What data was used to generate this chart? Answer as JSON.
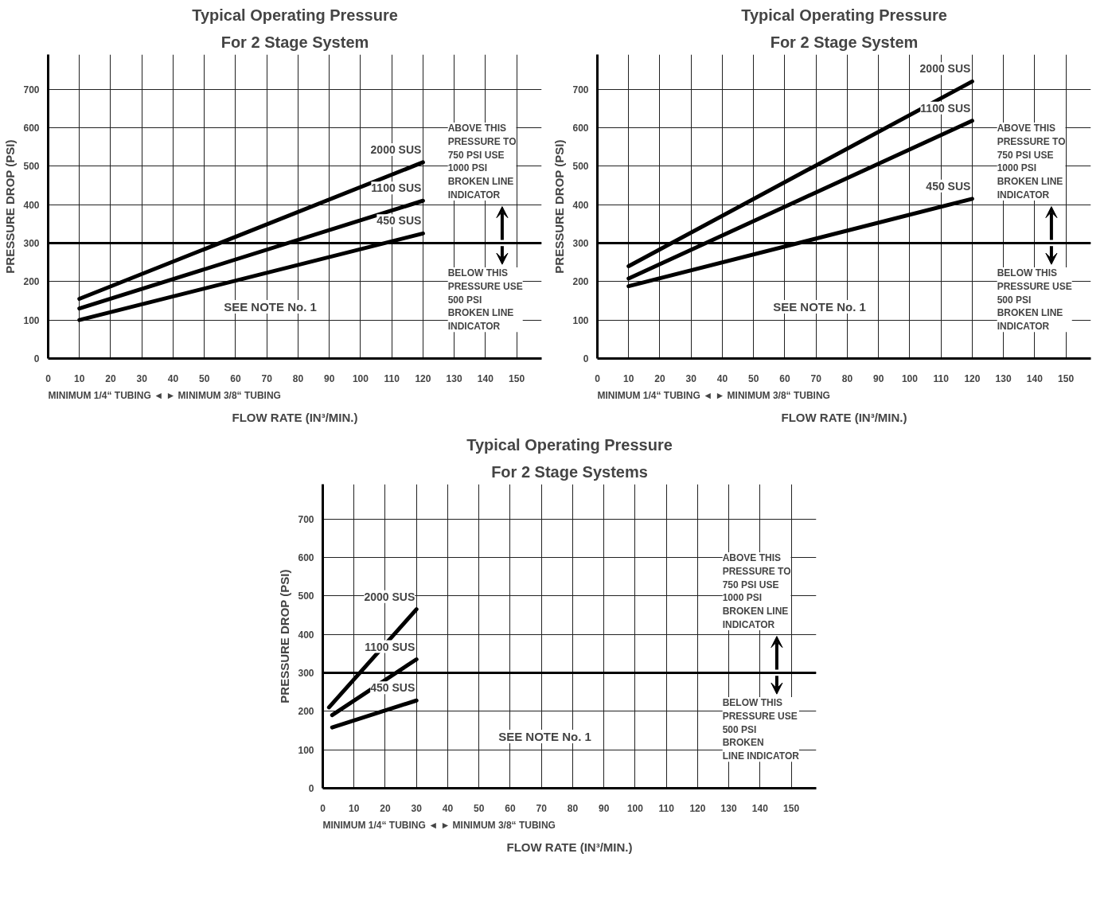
{
  "chart_data": [
    {
      "type": "line",
      "title": "Typical Operating Pressure",
      "subtitle": "For 2 Stage System",
      "xlabel": "FLOW RATE (IN³/MIN.)",
      "ylabel": "PRESSURE DROP (PSI)",
      "series": [
        {
          "name": "2000 SUS",
          "color": "#000000",
          "x": [
            10,
            120
          ],
          "values": [
            155,
            510
          ]
        },
        {
          "name": "1100 SUS",
          "color": "#000000",
          "x": [
            10,
            120
          ],
          "values": [
            130,
            410
          ]
        },
        {
          "name": "450 SUS",
          "color": "#000000",
          "x": [
            10,
            120
          ],
          "values": [
            100,
            325
          ]
        }
      ],
      "xlim": [
        0,
        158
      ],
      "ylim": [
        0,
        790
      ],
      "xticks": [
        0,
        10,
        20,
        30,
        40,
        50,
        60,
        70,
        80,
        90,
        100,
        110,
        120,
        130,
        140,
        150
      ],
      "yticks": [
        0,
        100,
        200,
        300,
        400,
        500,
        600,
        700
      ],
      "ref_lines": [
        {
          "axis": "y",
          "value": 300,
          "color": "#000000"
        }
      ],
      "annotations": [
        "SEE NOTE No. 1",
        "ABOVE THIS\nPRESSURE TO\n750 PSI USE\n1000 PSI\nBROKEN LINE\nINDICATOR",
        "BELOW THIS\nPRESSURE USE\n500 PSI\nBROKEN LINE\nINDICATOR",
        "MINIMUM 1/4“ TUBING ◄ ► MINIMUM 3/8“ TUBING"
      ],
      "grid": true,
      "legend": false,
      "marker": "none",
      "line_style": "solid"
    },
    {
      "type": "line",
      "title": "Typical Operating Pressure",
      "subtitle": "For 2 Stage System",
      "xlabel": "FLOW RATE (IN³/MIN.)",
      "ylabel": "PRESSURE DROP (PSI)",
      "series": [
        {
          "name": "2000 SUS",
          "color": "#000000",
          "x": [
            10,
            120
          ],
          "values": [
            240,
            720
          ]
        },
        {
          "name": "1100 SUS",
          "color": "#000000",
          "x": [
            10,
            120
          ],
          "values": [
            208,
            618
          ]
        },
        {
          "name": "450 SUS",
          "color": "#000000",
          "x": [
            10,
            120
          ],
          "values": [
            188,
            415
          ]
        }
      ],
      "xlim": [
        0,
        158
      ],
      "ylim": [
        0,
        790
      ],
      "xticks": [
        0,
        10,
        20,
        30,
        40,
        50,
        60,
        70,
        80,
        90,
        100,
        110,
        120,
        130,
        140,
        150
      ],
      "yticks": [
        0,
        100,
        200,
        300,
        400,
        500,
        600,
        700
      ],
      "ref_lines": [
        {
          "axis": "y",
          "value": 300,
          "color": "#000000"
        }
      ],
      "annotations": [
        "SEE NOTE No. 1",
        "ABOVE THIS\nPRESSURE TO\n750 PSI USE\n1000 PSI\nBROKEN LINE\nINDICATOR",
        "BELOW THIS\nPRESSURE USE\n500 PSI\nBROKEN LINE\nINDICATOR",
        "MINIMUM 1/4“ TUBING ◄ ► MINIMUM 3/8“ TUBING"
      ],
      "grid": true,
      "legend": false,
      "marker": "none",
      "line_style": "solid"
    },
    {
      "type": "line",
      "title": "Typical Operating Pressure",
      "subtitle": "For 2 Stage Systems",
      "xlabel": "FLOW RATE (IN³/MIN.)",
      "ylabel": "PRESSURE DROP (PSI)",
      "series": [
        {
          "name": "2000 SUS",
          "color": "#000000",
          "x": [
            2,
            30
          ],
          "values": [
            210,
            465
          ]
        },
        {
          "name": "1100 SUS",
          "color": "#000000",
          "x": [
            3,
            30
          ],
          "values": [
            190,
            335
          ]
        },
        {
          "name": "450 SUS",
          "color": "#000000",
          "x": [
            3,
            30
          ],
          "values": [
            158,
            228
          ]
        }
      ],
      "xlim": [
        0,
        158
      ],
      "ylim": [
        0,
        790
      ],
      "xticks": [
        0,
        10,
        20,
        30,
        40,
        50,
        60,
        70,
        80,
        90,
        100,
        110,
        120,
        130,
        140,
        150
      ],
      "yticks": [
        0,
        100,
        200,
        300,
        400,
        500,
        600,
        700
      ],
      "ref_lines": [
        {
          "axis": "y",
          "value": 300,
          "color": "#000000"
        }
      ],
      "annotations": [
        "SEE NOTE No. 1",
        "ABOVE THIS\nPRESSURE TO\n750 PSI USE\n1000 PSI\nBROKEN LINE\nINDICATOR",
        "BELOW THIS\nPRESSURE USE\n500 PSI\nBROKEN\nLINE INDICATOR",
        "MINIMUM 1/4“ TUBING ◄ ► MINIMUM 3/8“ TUBING"
      ],
      "grid": true,
      "legend": false,
      "marker": "none",
      "line_style": "solid"
    }
  ]
}
